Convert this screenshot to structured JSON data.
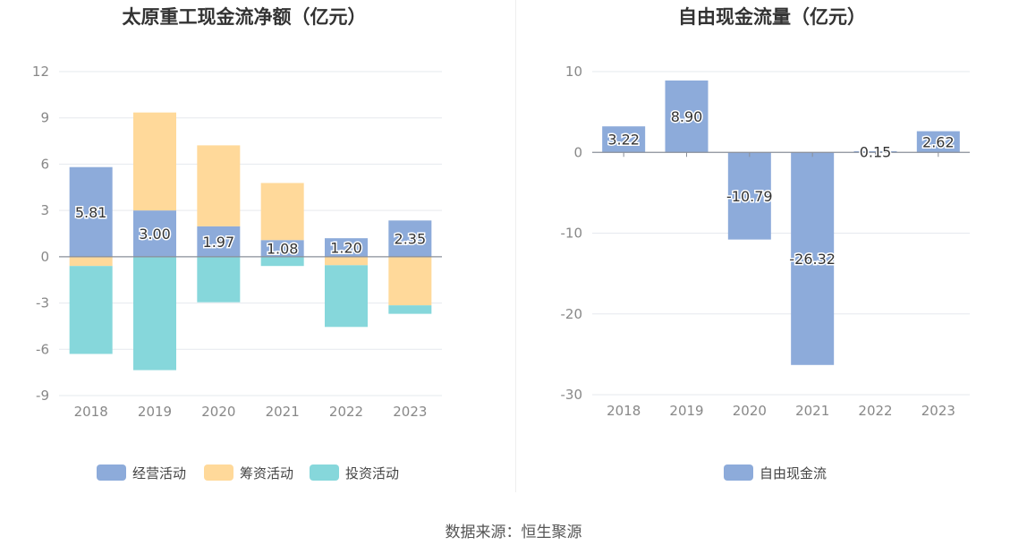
{
  "source": "数据来源：恒生聚源",
  "chart_data": [
    {
      "type": "bar",
      "stacked": true,
      "title": "太原重工现金流净额（亿元）",
      "categories": [
        "2018",
        "2019",
        "2020",
        "2021",
        "2022",
        "2023"
      ],
      "ylim": [
        -9,
        12
      ],
      "yticks": [
        -9,
        -6,
        -3,
        0,
        3,
        6,
        9,
        12
      ],
      "grid": true,
      "legend_position": "bottom",
      "series": [
        {
          "name": "经营活动",
          "color": "#8dabda",
          "values": [
            5.81,
            3.0,
            1.97,
            1.08,
            1.2,
            2.35
          ],
          "labels": [
            "5.81",
            "3.00",
            "1.97",
            "1.08",
            "1.20",
            "2.35"
          ]
        },
        {
          "name": "筹资活动",
          "color": "#ffd99a",
          "values": [
            -0.6,
            6.35,
            5.25,
            3.7,
            -0.55,
            -3.15
          ]
        },
        {
          "name": "投资活动",
          "color": "#86d7db",
          "values": [
            -5.7,
            -7.35,
            -2.95,
            -0.6,
            -4.0,
            -0.55
          ]
        }
      ]
    },
    {
      "type": "bar",
      "title": "自由现金流量（亿元）",
      "categories": [
        "2018",
        "2019",
        "2020",
        "2021",
        "2022",
        "2023"
      ],
      "ylim": [
        -30,
        10
      ],
      "yticks": [
        -30,
        -20,
        -10,
        0,
        10
      ],
      "grid": true,
      "legend_position": "bottom",
      "series": [
        {
          "name": "自由现金流",
          "color": "#8dabda",
          "values": [
            3.22,
            8.9,
            -10.79,
            -26.32,
            0.15,
            2.62
          ],
          "labels": [
            "3.22",
            "8.90",
            "-10.79",
            "-26.32",
            "0.15",
            "2.62"
          ]
        }
      ]
    }
  ]
}
